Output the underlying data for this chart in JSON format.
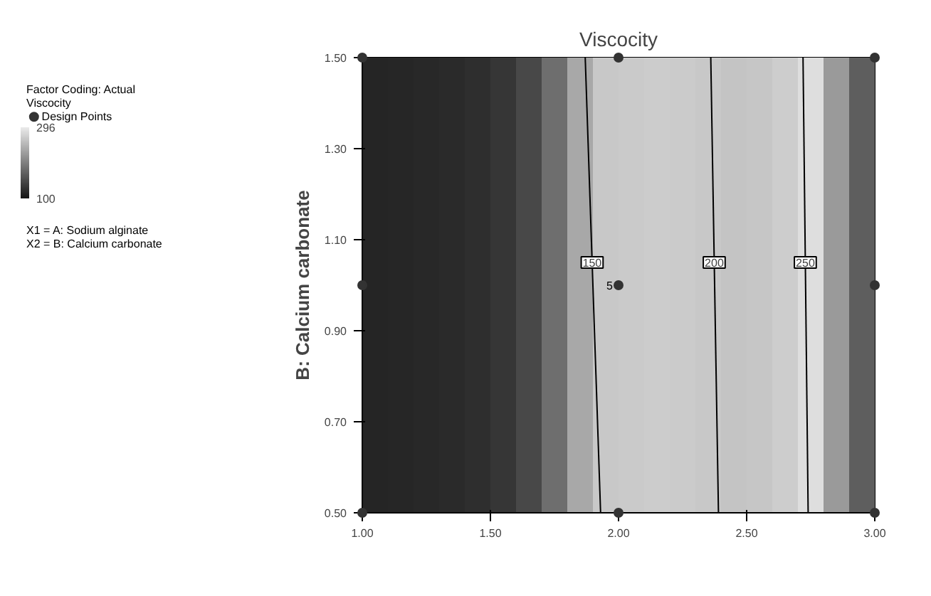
{
  "chart_data": {
    "type": "scatter",
    "title": "Viscocity",
    "ylabel": "B: Calcium carbonate",
    "xlim": [
      1.0,
      3.0
    ],
    "ylim": [
      0.5,
      1.5
    ],
    "xticks": [
      {
        "value": 1.0,
        "label": "1.00"
      },
      {
        "value": 1.5,
        "label": "1.50"
      },
      {
        "value": 2.0,
        "label": "2.00"
      },
      {
        "value": 2.5,
        "label": "2.50"
      },
      {
        "value": 3.0,
        "label": "3.00"
      }
    ],
    "yticks": [
      {
        "value": 0.5,
        "label": "0.50"
      },
      {
        "value": 0.7,
        "label": "0.70"
      },
      {
        "value": 0.9,
        "label": "0.90"
      },
      {
        "value": 1.1,
        "label": "1.10"
      },
      {
        "value": 1.3,
        "label": "1.30"
      },
      {
        "value": 1.5,
        "label": "1.50"
      }
    ],
    "clim": [
      100,
      296
    ],
    "cticks": [
      100,
      296
    ],
    "legend": "left",
    "bands": [
      {
        "axis": "x",
        "from": 1.0,
        "to": 1.1,
        "color": "#252525"
      },
      {
        "axis": "x",
        "from": 1.1,
        "to": 1.2,
        "color": "#262626"
      },
      {
        "axis": "x",
        "from": 1.2,
        "to": 1.3,
        "color": "#282828"
      },
      {
        "axis": "x",
        "from": 1.3,
        "to": 1.4,
        "color": "#2a2a2a"
      },
      {
        "axis": "x",
        "from": 1.4,
        "to": 1.5,
        "color": "#2e2e2e"
      },
      {
        "axis": "x",
        "from": 1.5,
        "to": 1.6,
        "color": "#363636"
      },
      {
        "axis": "x",
        "from": 1.6,
        "to": 1.7,
        "color": "#484848"
      },
      {
        "axis": "x",
        "from": 1.7,
        "to": 1.8,
        "color": "#6e6e6e"
      },
      {
        "axis": "x",
        "from": 1.8,
        "to": 1.9,
        "color": "#a8a8a8"
      },
      {
        "axis": "x",
        "from": 1.9,
        "to": 2.0,
        "color": "#c8c8c8"
      },
      {
        "axis": "x",
        "from": 2.0,
        "to": 2.1,
        "color": "#cacaca"
      },
      {
        "axis": "x",
        "from": 2.1,
        "to": 2.2,
        "color": "#cccccc"
      },
      {
        "axis": "x",
        "from": 2.2,
        "to": 2.3,
        "color": "#cbcbcb"
      },
      {
        "axis": "x",
        "from": 2.3,
        "to": 2.4,
        "color": "#c8c8c8"
      },
      {
        "axis": "x",
        "from": 2.4,
        "to": 2.5,
        "color": "#c4c4c4"
      },
      {
        "axis": "x",
        "from": 2.5,
        "to": 2.6,
        "color": "#c6c6c6"
      },
      {
        "axis": "x",
        "from": 2.6,
        "to": 2.7,
        "color": "#cdcdcd"
      },
      {
        "axis": "x",
        "from": 2.7,
        "to": 2.8,
        "color": "#dedede"
      },
      {
        "axis": "x",
        "from": 2.8,
        "to": 2.9,
        "color": "#9a9a9a"
      },
      {
        "axis": "x",
        "from": 2.9,
        "to": 3.0,
        "color": "#5e5e5e"
      }
    ],
    "annotations": [
      "Factor Coding: Actual",
      "Viscocity",
      "X1 = A: Sodium alginate",
      "X2 = B: Calcium carbonate",
      {
        "text": "5",
        "x": 2.0,
        "y": 1.0
      }
    ],
    "series": [
      {
        "type": "line",
        "name": "150",
        "color": "#000000",
        "x": [
          1.93,
          1.87
        ],
        "values": [
          0.5,
          1.5
        ]
      },
      {
        "type": "line",
        "name": "200",
        "color": "#000000",
        "x": [
          2.39,
          2.36
        ],
        "values": [
          0.5,
          1.5
        ]
      },
      {
        "type": "line",
        "name": "250",
        "color": "#000000",
        "x": [
          2.74,
          2.72
        ],
        "values": [
          0.5,
          1.5
        ]
      },
      {
        "name": "Design Points",
        "color": "#333333",
        "marker": "circle",
        "x": [
          1,
          1,
          1,
          2,
          2,
          2,
          3,
          3,
          3
        ],
        "values": [
          0.5,
          1.0,
          1.5,
          0.5,
          1.0,
          1.5,
          0.5,
          1.0,
          1.5
        ]
      }
    ]
  }
}
